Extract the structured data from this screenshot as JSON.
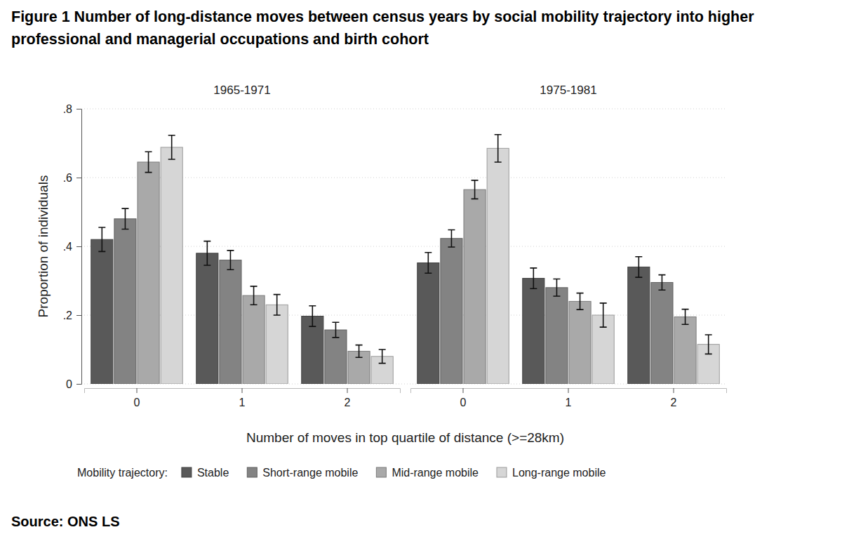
{
  "chart_data": {
    "type": "bar",
    "title": "Figure 1 Number of long-distance moves between census years by social mobility trajectory into higher professional and managerial occupations and birth cohort",
    "source": "Source: ONS LS",
    "x_label": "Number of moves in top quartile of distance (>=28km)",
    "y_label": "Proportion of individuals",
    "legend_title": "Mobility trajectory:",
    "legend": "bottom",
    "grid": true,
    "categories": [
      "0",
      "1",
      "2"
    ],
    "ylim": [
      0,
      0.8
    ],
    "yticks": [
      0,
      {
        "value": 0.2,
        "label": ".2"
      },
      {
        "value": 0.4,
        "label": ".4"
      },
      {
        "value": 0.6,
        "label": ".6"
      },
      {
        "value": 0.8,
        "label": ".8"
      }
    ],
    "series": [
      {
        "name": "Stable",
        "color": "#595959"
      },
      {
        "name": "Short-range mobile",
        "color": "#838383"
      },
      {
        "name": "Mid-range mobile",
        "color": "#a9a9a9"
      },
      {
        "name": "Long-range mobile",
        "color": "#d6d6d6"
      }
    ],
    "panels": [
      {
        "title": "1965-1971",
        "values": [
          [
            0.42,
            0.38,
            0.197
          ],
          [
            0.48,
            0.36,
            0.157
          ],
          [
            0.645,
            0.257,
            0.095
          ],
          [
            0.688,
            0.23,
            0.08
          ]
        ],
        "errors": [
          [
            0.035,
            0.035,
            0.03
          ],
          [
            0.03,
            0.028,
            0.022
          ],
          [
            0.03,
            0.027,
            0.018
          ],
          [
            0.035,
            0.03,
            0.02
          ]
        ]
      },
      {
        "title": "1975-1981",
        "values": [
          [
            0.352,
            0.307,
            0.34
          ],
          [
            0.423,
            0.28,
            0.295
          ],
          [
            0.565,
            0.24,
            0.195
          ],
          [
            0.685,
            0.2,
            0.115
          ]
        ],
        "errors": [
          [
            0.03,
            0.03,
            0.03
          ],
          [
            0.025,
            0.025,
            0.022
          ],
          [
            0.027,
            0.024,
            0.022
          ],
          [
            0.04,
            0.035,
            0.028
          ]
        ]
      }
    ]
  }
}
